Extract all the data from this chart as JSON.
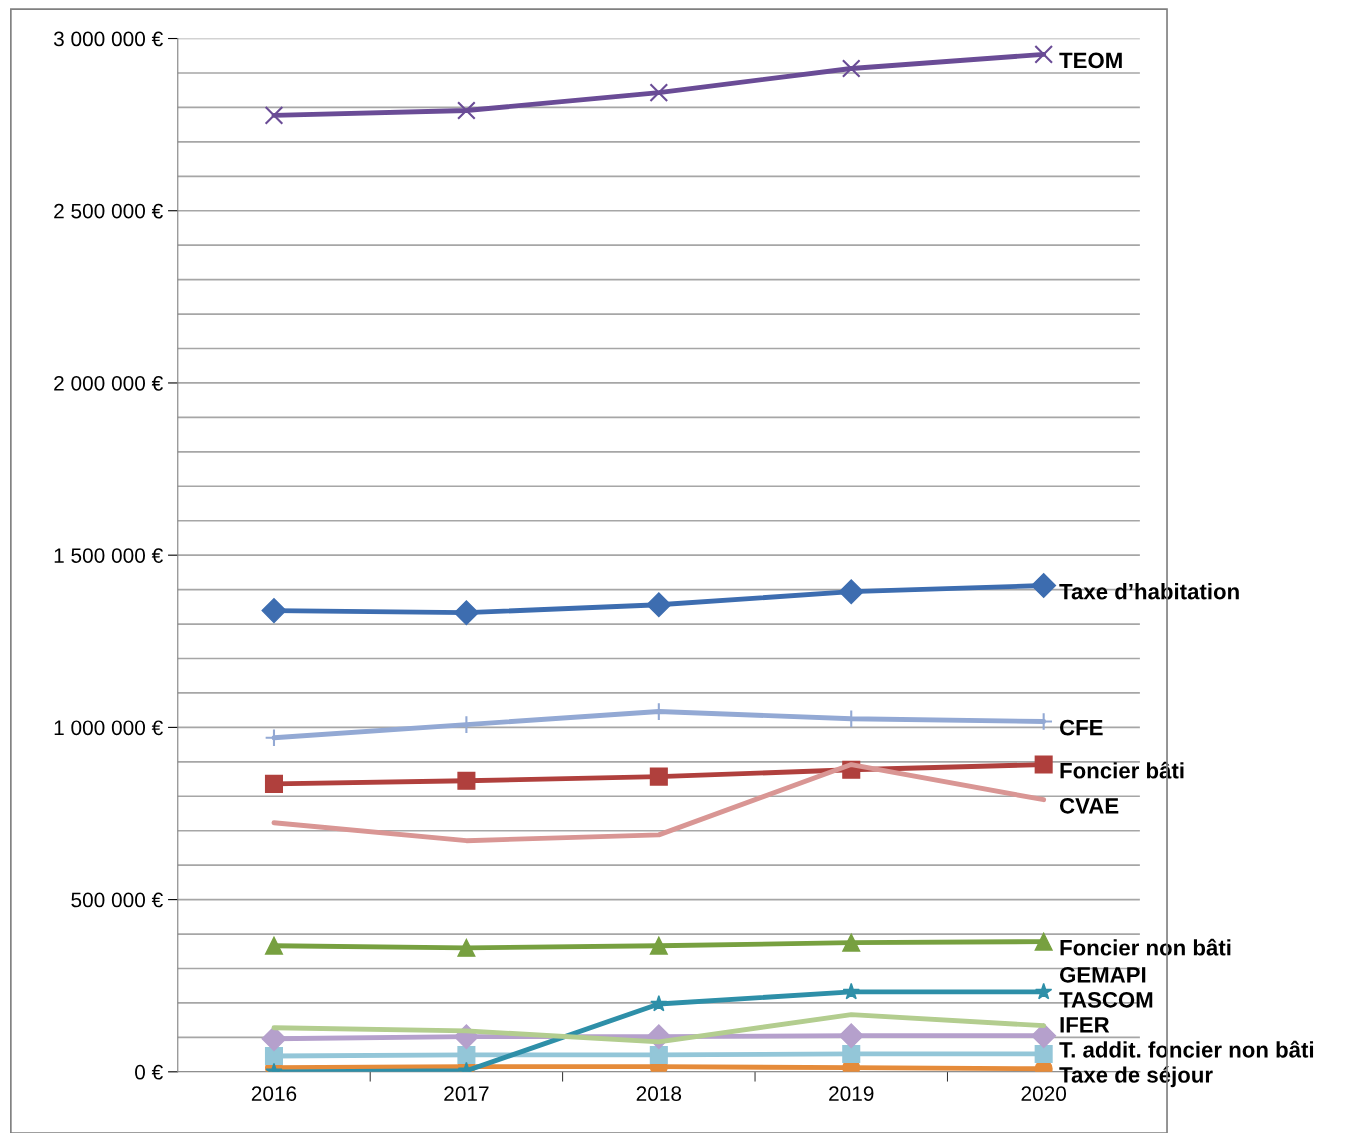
{
  "chart_data": {
    "type": "line",
    "categories": [
      "2016",
      "2017",
      "2018",
      "2019",
      "2020"
    ],
    "ylim": [
      0,
      3000000
    ],
    "yticks": [
      {
        "value": 0,
        "label": "0 €"
      },
      {
        "value": 100000,
        "label": null
      },
      {
        "value": 200000,
        "label": null
      },
      {
        "value": 300000,
        "label": null
      },
      {
        "value": 400000,
        "label": null
      },
      {
        "value": 500000,
        "label": "500 000 €"
      },
      {
        "value": 600000,
        "label": null
      },
      {
        "value": 700000,
        "label": null
      },
      {
        "value": 800000,
        "label": null
      },
      {
        "value": 900000,
        "label": null
      },
      {
        "value": 1000000,
        "label": "1 000 000 €"
      },
      {
        "value": 1100000,
        "label": null
      },
      {
        "value": 1200000,
        "label": null
      },
      {
        "value": 1300000,
        "label": null
      },
      {
        "value": 1400000,
        "label": null
      },
      {
        "value": 1500000,
        "label": "1 500 000 €"
      },
      {
        "value": 1600000,
        "label": null
      },
      {
        "value": 1700000,
        "label": null
      },
      {
        "value": 1800000,
        "label": null
      },
      {
        "value": 1900000,
        "label": null
      },
      {
        "value": 2000000,
        "label": "2 000 000 €"
      },
      {
        "value": 2100000,
        "label": null
      },
      {
        "value": 2200000,
        "label": null
      },
      {
        "value": 2300000,
        "label": null
      },
      {
        "value": 2400000,
        "label": null
      },
      {
        "value": 2500000,
        "label": "2 500 000 €"
      },
      {
        "value": 2600000,
        "label": null
      },
      {
        "value": 2700000,
        "label": null
      },
      {
        "value": 2800000,
        "label": null
      },
      {
        "value": 2900000,
        "label": null
      },
      {
        "value": 3000000,
        "label": "3 000 000 €"
      }
    ],
    "grid": "y",
    "legend": false,
    "series": [
      {
        "name": "TEOM",
        "color": "#6a4c96",
        "marker": "cross",
        "values": [
          2777000,
          2791000,
          2843000,
          2913000,
          2954000
        ]
      },
      {
        "name": "Taxe d’habitation",
        "color": "#3d6db0",
        "marker": "diamond",
        "values": [
          1339000,
          1333000,
          1356000,
          1394000,
          1412000
        ]
      },
      {
        "name": "CFE",
        "color": "#93a9d4",
        "marker": "plus",
        "values": [
          970000,
          1008000,
          1046000,
          1025000,
          1017000
        ]
      },
      {
        "name": "Foncier bâti",
        "color": "#b0403d",
        "marker": "square",
        "values": [
          836000,
          845000,
          857000,
          877000,
          892000
        ]
      },
      {
        "name": "CVAE",
        "color": "#d99694",
        "marker": "none",
        "values": [
          723000,
          671000,
          688000,
          892000,
          790000
        ]
      },
      {
        "name": "Foncier non bâti",
        "color": "#77a040",
        "marker": "triangle",
        "values": [
          366000,
          360000,
          366000,
          375000,
          378000
        ]
      },
      {
        "name": "GEMAPI",
        "color": "#2e8fa8",
        "marker": "star",
        "values": [
          0,
          3000,
          197000,
          232000,
          232000
        ]
      },
      {
        "name": "TASCOM",
        "color": "#b3cd8f",
        "marker": "none",
        "values": [
          128000,
          119000,
          87000,
          166000,
          134000
        ]
      },
      {
        "name": "IFER",
        "color": "#b5a0cc",
        "marker": "diamond",
        "values": [
          96000,
          102000,
          102000,
          105000,
          105000
        ]
      },
      {
        "name": "T. addit. foncier non bâti",
        "color": "#93c6d8",
        "marker": "square",
        "values": [
          46000,
          49000,
          49000,
          52000,
          52000
        ]
      },
      {
        "name": "Taxe de séjour",
        "color": "#e58b3a",
        "marker": "circle",
        "values": [
          12000,
          15000,
          15000,
          12000,
          9000
        ]
      }
    ]
  }
}
